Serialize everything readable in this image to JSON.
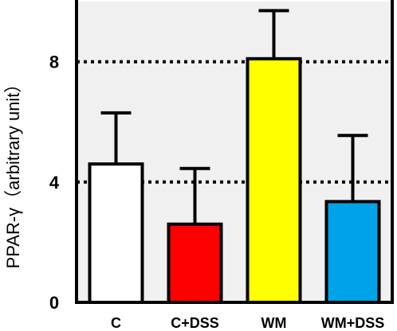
{
  "chart_data": {
    "type": "bar",
    "categories": [
      "C",
      "C+DSS",
      "WM",
      "WM+DSS"
    ],
    "values": [
      4.6,
      2.6,
      8.1,
      3.35
    ],
    "errors": [
      1.7,
      1.85,
      1.6,
      2.2
    ],
    "colors": [
      "#ffffff",
      "#ff0000",
      "#ffff00",
      "#00a2e8"
    ],
    "ylabel": "PPAR-γ（arbitrary unit）",
    "ylim": [
      0,
      10
    ],
    "yticks": [
      0,
      4,
      8
    ],
    "reference_lines": [
      4,
      8
    ],
    "background_color": "#f0f0f0"
  }
}
